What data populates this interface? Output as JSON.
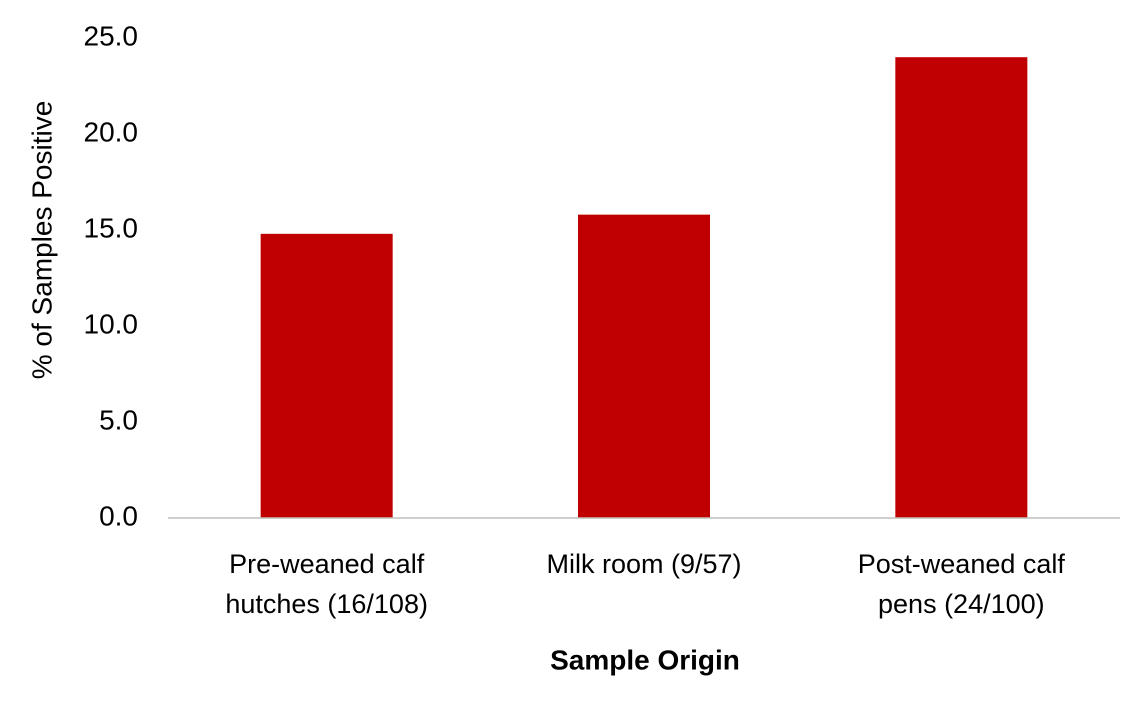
{
  "chart_data": {
    "type": "bar",
    "x_label": "Sample Origin",
    "y_label": "% of Samples Positive",
    "categories": [
      "Pre-weaned calf hutches (16/108)",
      "Milk room (9/57)",
      "Post-weaned calf pens (24/100)"
    ],
    "values": [
      14.8,
      15.8,
      24.0
    ],
    "color": "#c00000",
    "ylim": [
      0,
      25
    ],
    "yticks": [
      {
        "value": 0,
        "label": "0.0"
      },
      {
        "value": 5,
        "label": "5.0"
      },
      {
        "value": 10,
        "label": "10.0"
      },
      {
        "value": 15,
        "label": "15.0"
      },
      {
        "value": 20,
        "label": "20.0"
      },
      {
        "value": 25,
        "label": "25.0"
      }
    ],
    "grid": false
  }
}
